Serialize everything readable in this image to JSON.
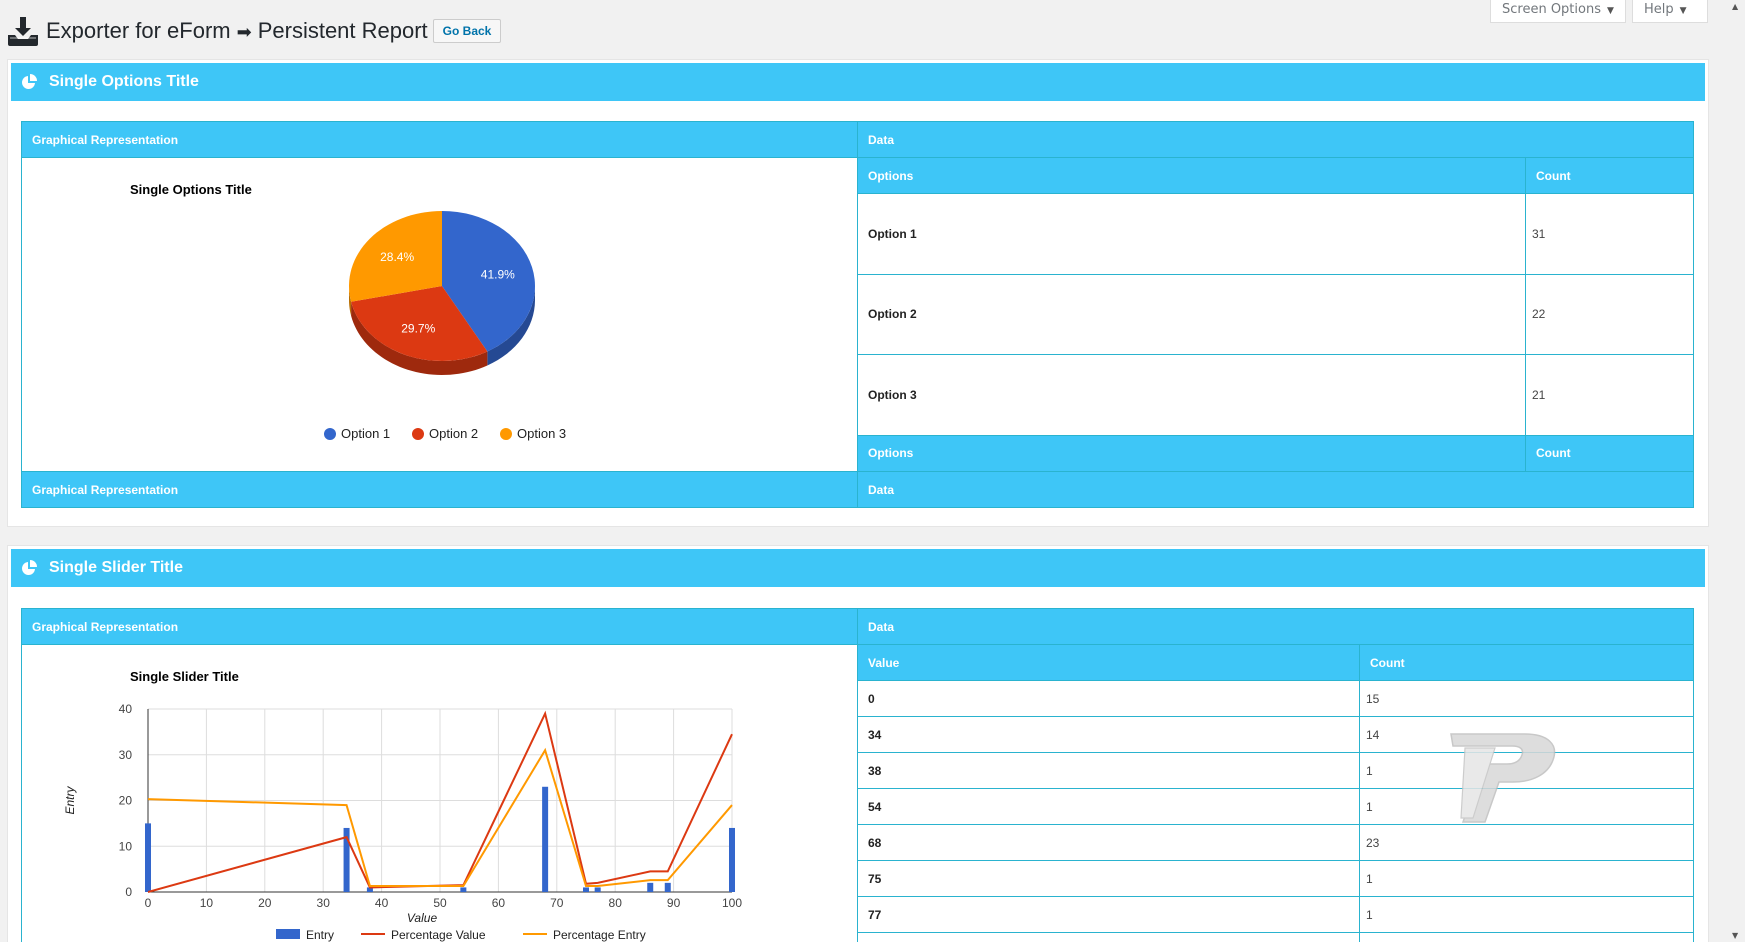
{
  "header": {
    "title_part1": "Exporter for eForm",
    "title_part2": "Persistent Report",
    "go_back": "Go Back",
    "screen_options": "Screen Options",
    "help": "Help"
  },
  "panels": [
    {
      "title": "Single Options Title",
      "left_header": "Graphical Representation",
      "right_header": "Data",
      "col1": "Options",
      "col2": "Count",
      "rows": [
        {
          "label": "Option 1",
          "count": "31"
        },
        {
          "label": "Option 2",
          "count": "22"
        },
        {
          "label": "Option 3",
          "count": "21"
        }
      ]
    },
    {
      "title": "Single Slider Title",
      "left_header": "Graphical Representation",
      "right_header": "Data",
      "col1": "Value",
      "col2": "Count",
      "rows": [
        {
          "label": "0",
          "count": "15"
        },
        {
          "label": "34",
          "count": "14"
        },
        {
          "label": "38",
          "count": "1"
        },
        {
          "label": "54",
          "count": "1"
        },
        {
          "label": "68",
          "count": "23"
        },
        {
          "label": "75",
          "count": "1"
        },
        {
          "label": "77",
          "count": "1"
        }
      ]
    }
  ],
  "chart_data": [
    {
      "type": "pie",
      "title": "Single Options Title",
      "categories": [
        "Option 1",
        "Option 2",
        "Option 3"
      ],
      "values": [
        31,
        22,
        21
      ],
      "labels": [
        "41.9%",
        "29.7%",
        "28.4%"
      ],
      "colors": [
        "#3366cc",
        "#dc3912",
        "#ff9900"
      ],
      "legend": "bottom"
    },
    {
      "type": "bar",
      "title": "Single Slider Title",
      "xlabel": "Value",
      "ylabel": "Entry",
      "xlim": [
        0,
        100
      ],
      "ylim": [
        0,
        40
      ],
      "xticks": [
        "0",
        "10",
        "20",
        "30",
        "40",
        "50",
        "60",
        "70",
        "80",
        "90",
        "100"
      ],
      "yticks": [
        "0",
        "10",
        "20",
        "30",
        "40"
      ],
      "grid": true,
      "legend": "bottom",
      "series": [
        {
          "name": "Entry",
          "kind": "bar",
          "color": "#3366cc",
          "x": [
            0,
            34,
            38,
            54,
            68,
            75,
            77,
            86,
            89,
            100
          ],
          "values": [
            15,
            14,
            1,
            1,
            23,
            1,
            1,
            2,
            2,
            14
          ]
        },
        {
          "name": "Percentage Value",
          "kind": "line",
          "color": "#dc3912",
          "x": [
            0,
            34,
            38,
            54,
            68,
            75,
            77,
            86,
            89,
            100
          ],
          "values": [
            0,
            12,
            1,
            1.5,
            39,
            1.8,
            2,
            4.5,
            4.5,
            34.5
          ]
        },
        {
          "name": "Percentage Entry",
          "kind": "line",
          "color": "#ff9900",
          "x": [
            0,
            34,
            38,
            54,
            68,
            75,
            77,
            86,
            89,
            100
          ],
          "values": [
            20.3,
            19,
            1.3,
            1.3,
            31,
            1.3,
            1.3,
            2.6,
            2.6,
            19
          ]
        }
      ]
    }
  ]
}
